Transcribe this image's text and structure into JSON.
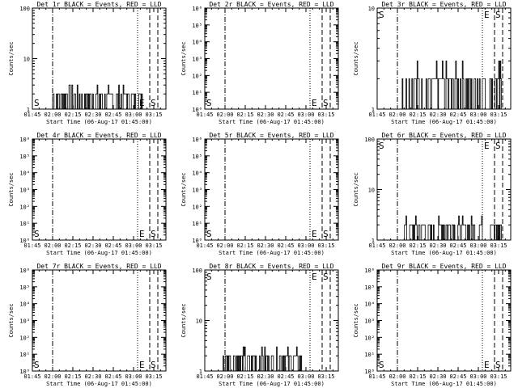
{
  "x_ticks": [
    "01:45",
    "02:00",
    "02:15",
    "02:30",
    "02:45",
    "03:00",
    "03:15"
  ],
  "x_label": "Start Time (06-Aug-17 01:45:00)",
  "y_label": "Counts/sec",
  "marker_labels": {
    "s": "S",
    "e": "E",
    "s2": "S"
  },
  "chart_data": [
    {
      "type": "line",
      "title": "Det 1r BLACK = Events, RED = LLD",
      "ylabel": "Counts/sec",
      "log_y": true,
      "yticks": [
        "1",
        "10",
        "100"
      ],
      "ylim": [
        1,
        100
      ],
      "series": [
        {
          "x_range_min": [
            15,
            82
          ],
          "values": "fluctuating 1-3 counts/sec"
        }
      ]
    },
    {
      "type": "line",
      "title": "Det 2r BLACK = Events, RED = LLD",
      "ylabel": "Counts/sec",
      "log_y": true,
      "yticks": [
        "10⁰",
        "10¹",
        "10²",
        "10³",
        "10⁴",
        "10⁵",
        "10⁶"
      ],
      "ylim": [
        1,
        1000000
      ],
      "series": []
    },
    {
      "type": "line",
      "title": "Det 3r BLACK = Events, RED = LLD",
      "ylabel": "Counts/sec",
      "log_y": true,
      "yticks": [
        "1",
        "10"
      ],
      "ylim": [
        1,
        10
      ],
      "series": [
        {
          "x_range_min": [
            18,
            92
          ],
          "values": "fluctuating 1-2 counts/sec"
        }
      ]
    },
    {
      "type": "line",
      "title": "Det 4r BLACK = Events, RED = LLD",
      "ylabel": "Counts/sec",
      "log_y": true,
      "yticks": [
        "10⁰",
        "10¹",
        "10²",
        "10³",
        "10⁴",
        "10⁵",
        "10⁶"
      ],
      "ylim": [
        1,
        1000000
      ],
      "series": []
    },
    {
      "type": "line",
      "title": "Det 5r BLACK = Events, RED = LLD",
      "ylabel": "Counts/sec",
      "log_y": true,
      "yticks": [
        "10⁰",
        "10¹",
        "10²",
        "10³",
        "10⁴",
        "10⁵",
        "10⁶"
      ],
      "ylim": [
        1,
        1000000
      ],
      "series": []
    },
    {
      "type": "line",
      "title": "Det 6r BLACK = Events, RED = LLD",
      "ylabel": "Counts/sec",
      "log_y": true,
      "yticks": [
        "1",
        "10",
        "100"
      ],
      "ylim": [
        1,
        100
      ],
      "series": [
        {
          "x_range_min": [
            18,
            92
          ],
          "values": "fluctuating 1-3 counts/sec"
        }
      ]
    },
    {
      "type": "line",
      "title": "Det 7r BLACK = Events, RED = LLD",
      "ylabel": "Counts/sec",
      "log_y": true,
      "yticks": [
        "10⁰",
        "10¹",
        "10²",
        "10³",
        "10⁴",
        "10⁵",
        "10⁶"
      ],
      "ylim": [
        1,
        1000000
      ],
      "series": []
    },
    {
      "type": "line",
      "title": "Det 8r BLACK = Events, RED = LLD",
      "ylabel": "Counts/sec",
      "log_y": true,
      "yticks": [
        "1",
        "10",
        "100"
      ],
      "ylim": [
        1,
        100
      ],
      "series": [
        {
          "x_range_min": [
            13,
            72
          ],
          "values": "fluctuating 1-3 counts/sec"
        }
      ]
    },
    {
      "type": "line",
      "title": "Det 9r BLACK = Events, RED = LLD",
      "ylabel": "Counts/sec",
      "log_y": true,
      "yticks": [
        "10⁰",
        "10¹",
        "10²",
        "10³",
        "10⁴",
        "10⁵",
        "10⁶"
      ],
      "ylim": [
        1,
        1000000
      ],
      "series": []
    }
  ],
  "time_markers_min": {
    "dash_dot": 15,
    "dotted": 78,
    "dashed_1": 87,
    "dashed_2": 93
  }
}
